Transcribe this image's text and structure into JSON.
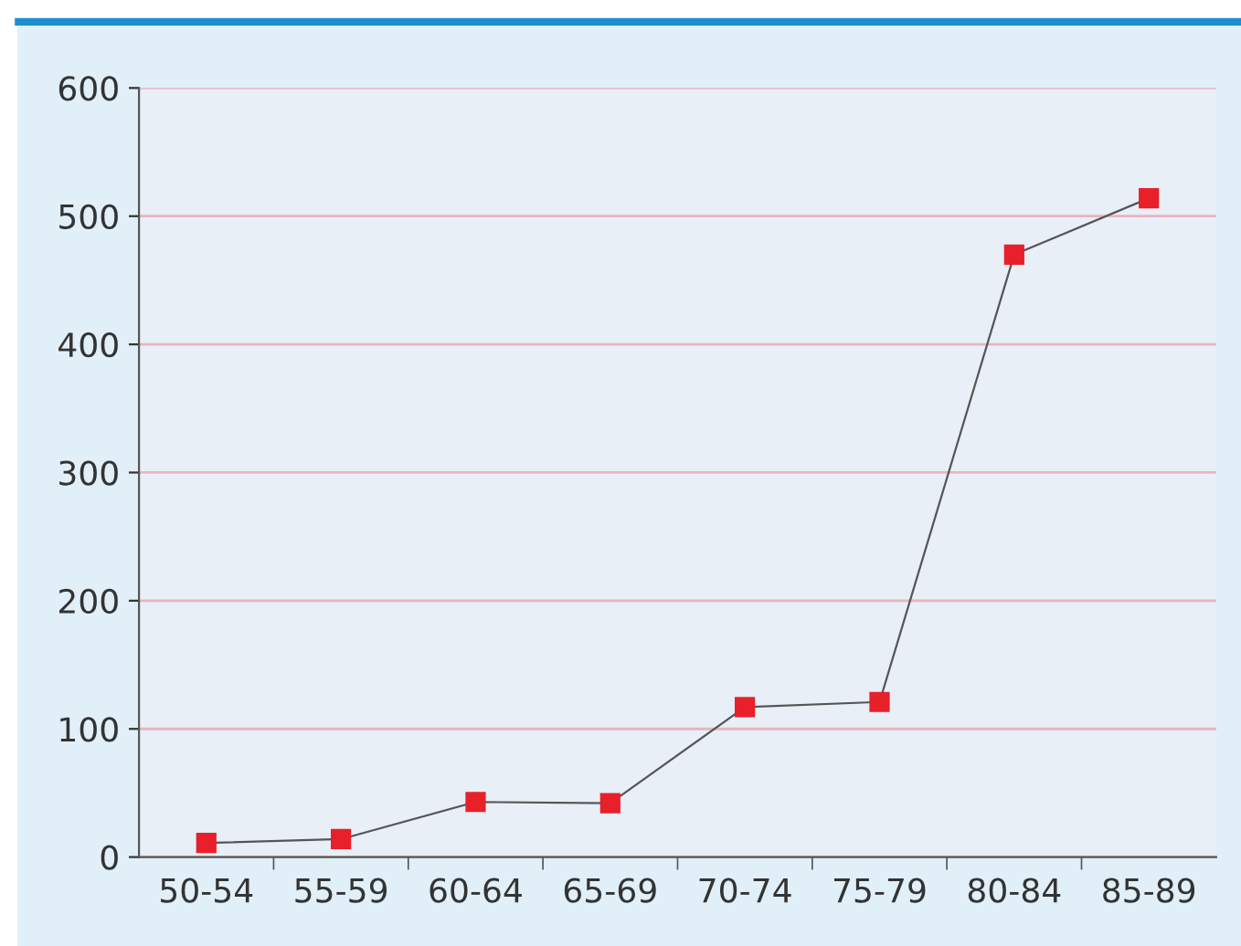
{
  "chart_data": {
    "type": "line",
    "categories": [
      "50-54",
      "55-59",
      "60-64",
      "65-69",
      "70-74",
      "75-79",
      "80-84",
      "85-89"
    ],
    "series": [
      {
        "color": "#e8202a",
        "values": [
          11,
          14,
          43,
          42,
          117,
          121,
          470,
          514
        ]
      }
    ],
    "ylim": [
      0,
      600
    ],
    "yticks": [
      0,
      100,
      200,
      300,
      400,
      500,
      600
    ],
    "grid": "y",
    "marker": "square",
    "line_style": "solid"
  }
}
